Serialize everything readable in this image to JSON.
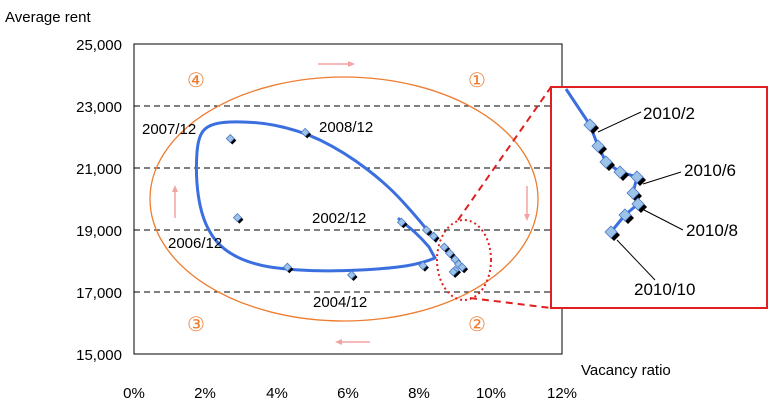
{
  "chart_data": {
    "type": "scatter",
    "xlabel": "Vacancy ratio",
    "ylabel": "Average rent",
    "xlim": [
      0,
      12
    ],
    "ylim": [
      15000,
      25000
    ],
    "x_ticks": [
      "0%",
      "2%",
      "4%",
      "6%",
      "8%",
      "10%",
      "12%"
    ],
    "y_ticks": [
      "15,000",
      "17,000",
      "19,000",
      "21,000",
      "23,000",
      "25,000"
    ],
    "gridlines_y": [
      17000,
      19000,
      21000,
      23000
    ],
    "series": [
      {
        "points": [
          {
            "x": 7.5,
            "y": 19250
          },
          {
            "x": 8.2,
            "y": 19000
          },
          {
            "x": 8.4,
            "y": 18800
          },
          {
            "x": 8.1,
            "y": 17850
          },
          {
            "x": 6.1,
            "y": 17550
          },
          {
            "x": 4.3,
            "y": 17800
          },
          {
            "x": 2.9,
            "y": 19400
          },
          {
            "x": 2.7,
            "y": 21950
          },
          {
            "x": 4.8,
            "y": 22150
          },
          {
            "x": 8.7,
            "y": 18450
          },
          {
            "x": 8.85,
            "y": 18250
          },
          {
            "x": 9.0,
            "y": 18050
          },
          {
            "x": 9.1,
            "y": 17900
          },
          {
            "x": 9.2,
            "y": 17800
          },
          {
            "x": 9.0,
            "y": 17700
          },
          {
            "x": 8.95,
            "y": 17650
          }
        ],
        "annotations": [
          {
            "text": "2002/12",
            "x": 8.2,
            "y": 19000
          },
          {
            "text": "2004/12",
            "x": 6.1,
            "y": 17550
          },
          {
            "text": "2006/12",
            "x": 2.9,
            "y": 19400
          },
          {
            "text": "2007/12",
            "x": 2.7,
            "y": 21950
          },
          {
            "text": "2008/12",
            "x": 4.8,
            "y": 22150
          }
        ]
      }
    ],
    "quadrant_markers": [
      "①",
      "②",
      "③",
      "④"
    ],
    "zoom_labels": [
      "2010/2",
      "2010/6",
      "2010/8",
      "2010/10"
    ],
    "colors": {
      "line": "#3B6FE0",
      "marker_fill": "#9DC3E6",
      "marker_shadow": "#000000",
      "ellipse": "#ED7D31",
      "arrow": "#F4A3A3",
      "zoom_box": "#E02020",
      "grid": "#000000"
    }
  }
}
